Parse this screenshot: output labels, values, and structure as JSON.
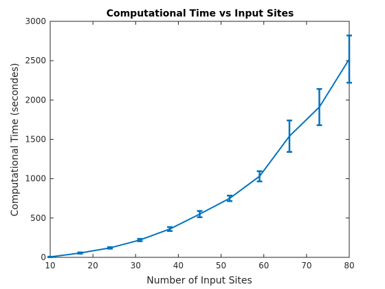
{
  "chart_data": {
    "type": "line",
    "title": "Computational Time vs Input Sites",
    "xlabel": "Number of Input Sites",
    "ylabel": "Computational Time (secondes)",
    "xlim": [
      10,
      80
    ],
    "ylim": [
      0,
      3000
    ],
    "xticks": [
      10,
      20,
      30,
      40,
      50,
      60,
      70,
      80
    ],
    "yticks": [
      0,
      500,
      1000,
      1500,
      2000,
      2500,
      3000
    ],
    "grid": false,
    "line_color": "#0072BD",
    "series": [
      {
        "x": [
          10,
          17,
          24,
          31,
          38,
          45,
          52,
          59,
          66,
          73,
          80
        ],
        "y": [
          5,
          55,
          120,
          220,
          360,
          550,
          750,
          1030,
          1540,
          1910,
          2520
        ],
        "error": [
          3,
          8,
          10,
          15,
          25,
          40,
          35,
          65,
          200,
          230,
          300
        ]
      }
    ]
  }
}
